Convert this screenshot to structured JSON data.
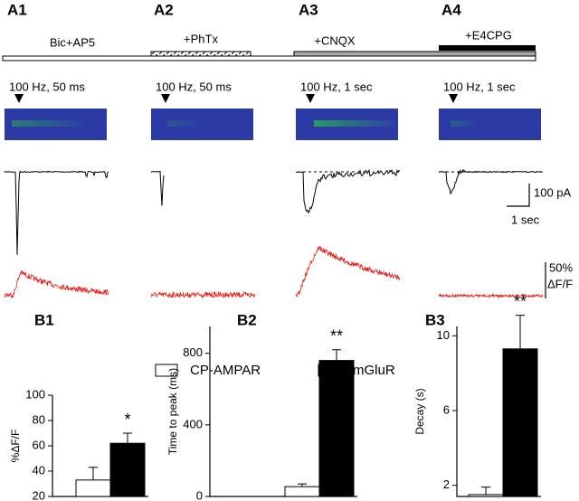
{
  "panels": [
    {
      "label": "A1",
      "drug": "Bic+AP5",
      "stimulus": "100 Hz, 50 ms"
    },
    {
      "label": "A2",
      "drug": "+PhTx",
      "stimulus": "100 Hz, 50 ms"
    },
    {
      "label": "A3",
      "drug": "+CNQX",
      "stimulus": "100 Hz, 1 sec"
    },
    {
      "label": "A4",
      "drug": "+E4CPG",
      "stimulus": "100 Hz, 1 sec"
    }
  ],
  "scale_bars": {
    "current": "100 pA",
    "time": "1 sec",
    "fluorescence": "50%",
    "fluorescence_unit": "ΔF/F"
  },
  "legend": [
    {
      "name": "CP-AMPAR",
      "color": "#ffffff"
    },
    {
      "name": "mGluR",
      "color": "#000000"
    }
  ],
  "chart_data": [
    {
      "type": "bar",
      "label": "B1",
      "ylabel": "%ΔF/F",
      "values": [
        33,
        62
      ],
      "errors": [
        10,
        8
      ],
      "significance": "*",
      "ylim": [
        20,
        100
      ],
      "yticks": [
        20,
        40,
        60,
        80,
        100
      ]
    },
    {
      "type": "bar",
      "label": "B2",
      "ylabel": "Time to peak (ms)",
      "values": [
        55,
        760
      ],
      "errors": [
        15,
        60
      ],
      "significance": "**",
      "ylim": [
        0,
        950
      ],
      "yticks": [
        0,
        400,
        800
      ]
    },
    {
      "type": "bar",
      "label": "B3",
      "ylabel": "Decay (s)",
      "values": [
        1.5,
        9.3
      ],
      "errors": [
        0.4,
        1.8
      ],
      "significance": "**",
      "ylim": [
        1.4,
        10.5
      ],
      "yticks": [
        2,
        6,
        10
      ]
    }
  ]
}
